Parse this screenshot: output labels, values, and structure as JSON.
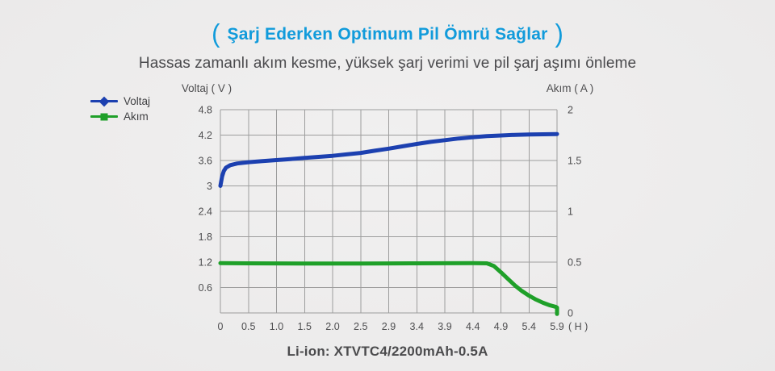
{
  "page": {
    "title": "Şarj Ederken Optimum Pil Ömrü Sağlar",
    "title_bracket_left": "(",
    "title_bracket_right": ")",
    "subtitle": "Hassas zamanlı akım kesme, yüksek şarj verimi ve pil şarj aşımı önleme",
    "caption": "Li-ion: XTVTC4/2200mAh-0.5A"
  },
  "colors": {
    "title_accent": "#119bdb",
    "voltage_line": "#1c40b0",
    "current_line": "#1fa029",
    "grid": "#9d9d9d",
    "text": "#4b4b4e"
  },
  "chart_data": {
    "type": "line",
    "title": "",
    "grid": true,
    "legend_position": "top-left",
    "left_axis": {
      "label": "Voltaj ( V )",
      "ticks": [
        "4.8",
        "4.2",
        "3.6",
        "3",
        "2.4",
        "1.8",
        "1.2",
        "0.6"
      ],
      "min": 0,
      "max": 4.8
    },
    "right_axis": {
      "label": "Akım ( A )",
      "ticks": [
        "2",
        "1.5",
        "1",
        "0.5",
        "0"
      ],
      "min": 0,
      "max": 2
    },
    "x_axis": {
      "tick_labels": [
        "0",
        "0.5",
        "1.0",
        "1.5",
        "2.0",
        "2.5",
        "2.9",
        "3.4",
        "3.9",
        "4.4",
        "4.9",
        "5.4",
        "5.9"
      ],
      "unit_label": "( H )"
    },
    "series": [
      {
        "name": "Voltaj",
        "axis": "left",
        "color": "#1c40b0",
        "marker": "diamond",
        "points": [
          [
            0,
            3.0
          ],
          [
            0.06,
            3.22
          ],
          [
            0.12,
            3.35
          ],
          [
            0.2,
            3.43
          ],
          [
            0.35,
            3.49
          ],
          [
            0.6,
            3.53
          ],
          [
            1,
            3.56
          ],
          [
            1.5,
            3.585
          ],
          [
            2,
            3.61
          ],
          [
            2.5,
            3.635
          ],
          [
            3,
            3.66
          ],
          [
            3.5,
            3.685
          ],
          [
            4,
            3.71
          ],
          [
            4.5,
            3.745
          ],
          [
            5,
            3.78
          ],
          [
            5.5,
            3.83
          ],
          [
            6,
            3.88
          ],
          [
            6.5,
            3.935
          ],
          [
            7,
            3.99
          ],
          [
            7.5,
            4.04
          ],
          [
            8,
            4.08
          ],
          [
            8.5,
            4.12
          ],
          [
            9,
            4.15
          ],
          [
            9.5,
            4.175
          ],
          [
            10,
            4.19
          ],
          [
            10.5,
            4.205
          ],
          [
            11,
            4.215
          ],
          [
            11.5,
            4.22
          ],
          [
            12,
            4.225
          ]
        ]
      },
      {
        "name": "Akım",
        "axis": "right",
        "color": "#1fa029",
        "marker": "square",
        "points": [
          [
            0,
            0.49
          ],
          [
            1,
            0.488
          ],
          [
            2,
            0.487
          ],
          [
            3,
            0.486
          ],
          [
            4,
            0.486
          ],
          [
            5,
            0.486
          ],
          [
            6,
            0.487
          ],
          [
            7,
            0.488
          ],
          [
            8,
            0.489
          ],
          [
            9,
            0.49
          ],
          [
            9.5,
            0.488
          ],
          [
            9.75,
            0.462
          ],
          [
            10,
            0.4
          ],
          [
            10.25,
            0.335
          ],
          [
            10.5,
            0.27
          ],
          [
            10.75,
            0.215
          ],
          [
            11,
            0.17
          ],
          [
            11.25,
            0.132
          ],
          [
            11.5,
            0.1
          ],
          [
            11.75,
            0.075
          ],
          [
            11.95,
            0.06
          ],
          [
            12,
            0.052
          ],
          [
            12,
            -0.01
          ]
        ]
      }
    ]
  }
}
